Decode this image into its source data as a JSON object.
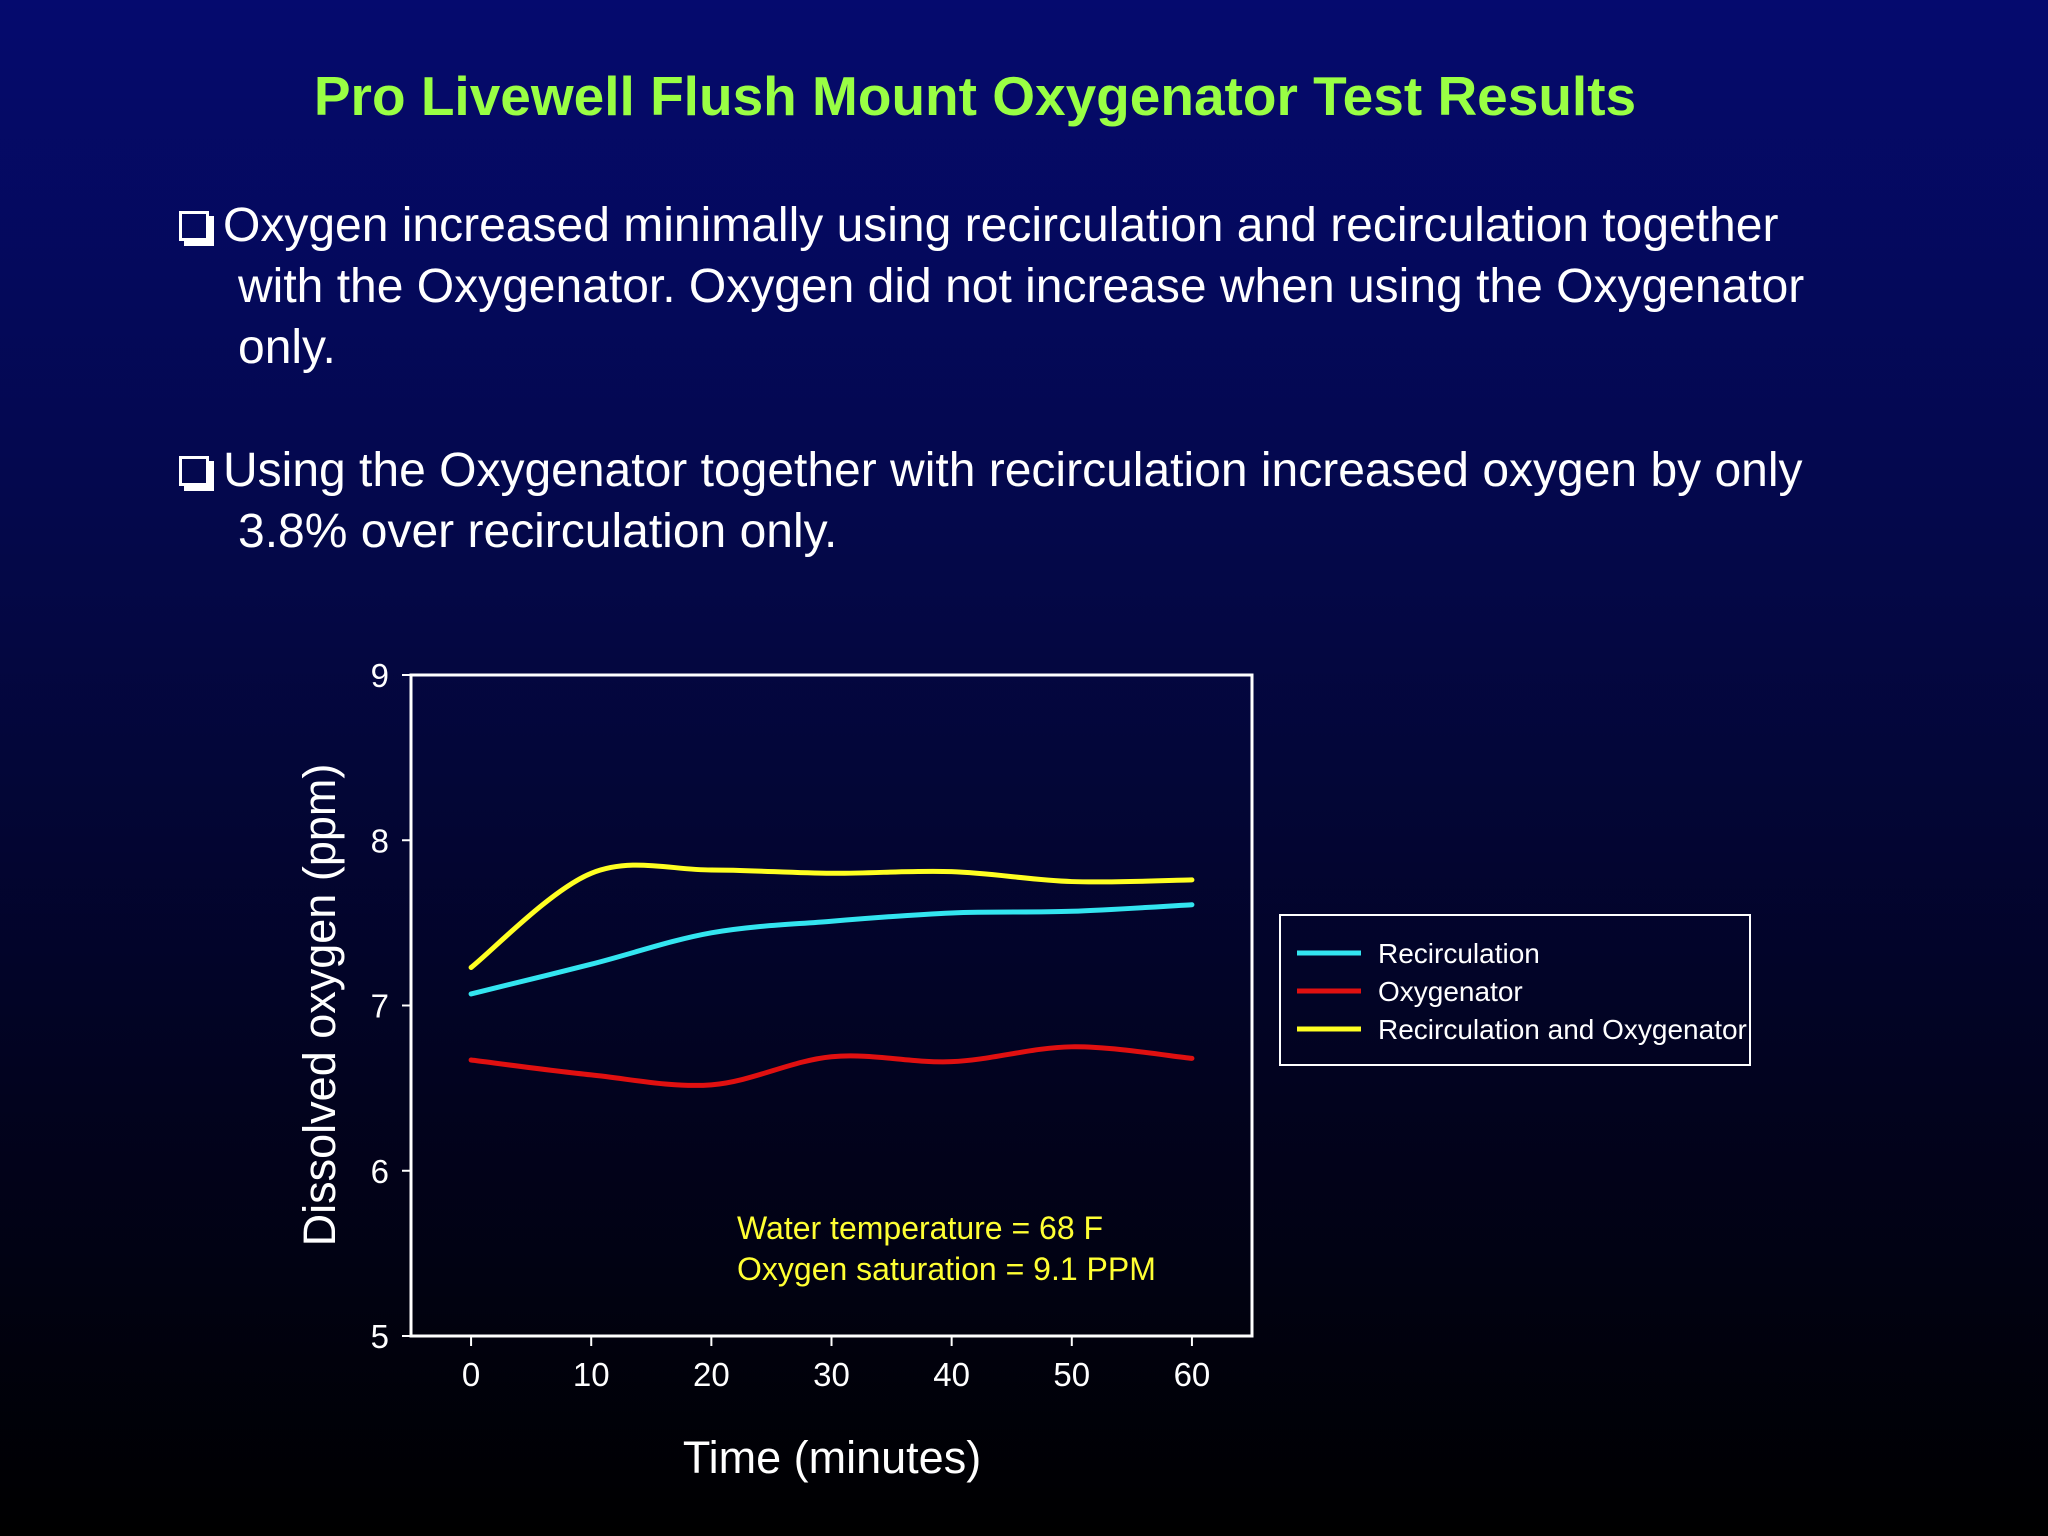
{
  "slide": {
    "title": "Pro Livewell Flush Mount Oxygenator Test Results",
    "bullets": [
      "Oxygen increased minimally using recirculation and recirculation together with the Oxygenator. Oxygen did not increase when using the Oxygenator only.",
      "Using the Oxygenator together with recirculation increased oxygen by only 3.8% over recirculation only."
    ]
  },
  "chart_data": {
    "type": "line",
    "title": "",
    "xlabel": "Time (minutes)",
    "ylabel": "Dissolved oxygen (ppm)",
    "xlim": [
      -5,
      65
    ],
    "ylim": [
      5,
      9
    ],
    "xticks": [
      0,
      10,
      20,
      30,
      40,
      50,
      60
    ],
    "yticks": [
      5,
      6,
      7,
      8,
      9
    ],
    "grid": false,
    "legend_position": "right",
    "x": [
      0,
      10,
      20,
      30,
      40,
      50,
      60
    ],
    "series": [
      {
        "name": "Recirculation",
        "color": "#33e5f0",
        "values": [
          7.07,
          7.25,
          7.44,
          7.51,
          7.56,
          7.57,
          7.61
        ]
      },
      {
        "name": "Oxygenator",
        "color": "#e01010",
        "values": [
          6.67,
          6.58,
          6.52,
          6.69,
          6.66,
          6.75,
          6.68
        ]
      },
      {
        "name": "Recirculation and Oxygenator",
        "color": "#ffff22",
        "values": [
          7.23,
          7.8,
          7.82,
          7.8,
          7.81,
          7.75,
          7.76
        ]
      }
    ],
    "annotations": [
      "Water temperature = 68 F",
      "Oxygen saturation = 9.1 PPM"
    ]
  }
}
